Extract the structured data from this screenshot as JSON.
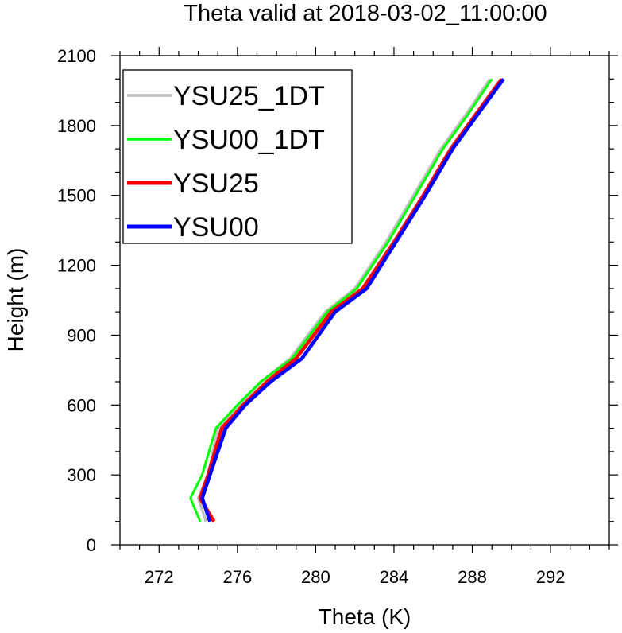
{
  "chart_data": {
    "type": "line",
    "title": "Theta valid at 2018-03-02_11:00:00",
    "xlabel": "Theta (K)",
    "ylabel": "Height (m)",
    "xlim": [
      270,
      295
    ],
    "ylim": [
      0,
      2100
    ],
    "xticks": [
      272,
      276,
      280,
      284,
      288,
      292
    ],
    "yticks": [
      0,
      300,
      600,
      900,
      1200,
      1500,
      1800,
      2100
    ],
    "grid": false,
    "legend_position": "top-left",
    "series": [
      {
        "name": "YSU25_1DT",
        "color": "#bfbfbf",
        "x": [
          274.4,
          274.0,
          274.5,
          275.0,
          276.1,
          277.2,
          278.7,
          280.5,
          282.0,
          283.6,
          285.0,
          286.4,
          287.7,
          288.9
        ],
        "y": [
          100,
          200,
          300,
          500,
          600,
          700,
          800,
          1000,
          1100,
          1300,
          1500,
          1700,
          1850,
          2000
        ]
      },
      {
        "name": "YSU00_1DT",
        "color": "#00ff00",
        "x": [
          274.1,
          273.6,
          274.2,
          274.9,
          276.0,
          277.2,
          278.8,
          280.6,
          282.1,
          283.7,
          285.1,
          286.5,
          287.8,
          289.0
        ],
        "y": [
          100,
          200,
          300,
          500,
          600,
          700,
          800,
          1000,
          1100,
          1300,
          1500,
          1700,
          1850,
          2000
        ]
      },
      {
        "name": "YSU25",
        "color": "#ff0000",
        "x": [
          274.8,
          274.1,
          274.5,
          275.2,
          276.3,
          277.5,
          279.0,
          280.8,
          282.4,
          284.0,
          285.5,
          286.9,
          288.2,
          289.5
        ],
        "y": [
          100,
          200,
          300,
          500,
          600,
          700,
          800,
          1000,
          1100,
          1300,
          1500,
          1700,
          1850,
          2000
        ]
      },
      {
        "name": "YSU00",
        "color": "#0000ff",
        "x": [
          274.6,
          274.2,
          274.6,
          275.4,
          276.4,
          277.7,
          279.3,
          281.0,
          282.6,
          284.1,
          285.6,
          287.0,
          288.3,
          289.6
        ],
        "y": [
          100,
          200,
          300,
          500,
          600,
          700,
          800,
          1000,
          1100,
          1300,
          1500,
          1700,
          1850,
          2000
        ]
      }
    ]
  }
}
